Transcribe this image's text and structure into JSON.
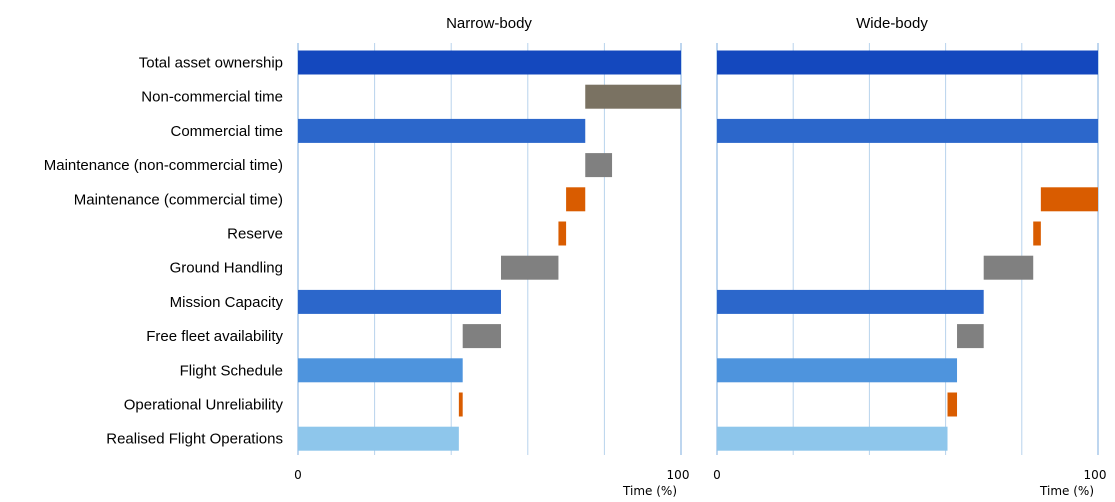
{
  "chart_data": {
    "type": "bar",
    "categories": [
      "Total asset ownership",
      "Non-commercial time",
      "Commercial time",
      "Maintenance (non-commercial time)",
      "Maintenance (commercial time)",
      "Reserve",
      "Ground Handling",
      "Mission Capacity",
      "Free fleet availability",
      "Flight Schedule",
      "Operational Unreliability",
      "Realised Flight Operations"
    ],
    "xlabel": "Time (%)",
    "xlim": [
      0,
      100
    ],
    "xticks": [
      "0",
      "100"
    ],
    "gridlines": [
      20,
      40,
      60,
      80
    ],
    "colors": {
      "dark_blue": "#1448BE",
      "blue": "#2C67CB",
      "mid_blue": "#4E94DD",
      "light_blue": "#8EC6EB",
      "brown_gray": "#7A7262",
      "gray": "#808080",
      "orange": "#D95C00",
      "grid": "#B8D3EC",
      "axis": "#A9C9EA"
    },
    "panels": [
      {
        "title": "Narrow-body",
        "bars": [
          {
            "start": 0,
            "end": 100,
            "color": "dark_blue"
          },
          {
            "start": 75,
            "end": 100,
            "color": "brown_gray"
          },
          {
            "start": 0,
            "end": 75,
            "color": "blue"
          },
          {
            "start": 75,
            "end": 82,
            "color": "gray"
          },
          {
            "start": 70,
            "end": 75,
            "color": "orange"
          },
          {
            "start": 68,
            "end": 70,
            "color": "orange"
          },
          {
            "start": 53,
            "end": 68,
            "color": "gray"
          },
          {
            "start": 0,
            "end": 53,
            "color": "blue"
          },
          {
            "start": 43,
            "end": 53,
            "color": "gray"
          },
          {
            "start": 0,
            "end": 43,
            "color": "mid_blue"
          },
          {
            "start": 42,
            "end": 43,
            "color": "orange"
          },
          {
            "start": 0,
            "end": 42,
            "color": "light_blue"
          }
        ]
      },
      {
        "title": "Wide-body",
        "bars": [
          {
            "start": 0,
            "end": 100,
            "color": "dark_blue"
          },
          {
            "start": 100,
            "end": 100,
            "color": "brown_gray"
          },
          {
            "start": 0,
            "end": 100,
            "color": "blue"
          },
          {
            "start": 100,
            "end": 100,
            "color": "gray"
          },
          {
            "start": 85,
            "end": 100,
            "color": "orange"
          },
          {
            "start": 83,
            "end": 85,
            "color": "orange"
          },
          {
            "start": 70,
            "end": 83,
            "color": "gray"
          },
          {
            "start": 0,
            "end": 70,
            "color": "blue"
          },
          {
            "start": 63,
            "end": 70,
            "color": "gray"
          },
          {
            "start": 0,
            "end": 63,
            "color": "mid_blue"
          },
          {
            "start": 60.5,
            "end": 63,
            "color": "orange"
          },
          {
            "start": 0,
            "end": 60.5,
            "color": "light_blue"
          }
        ]
      }
    ]
  }
}
